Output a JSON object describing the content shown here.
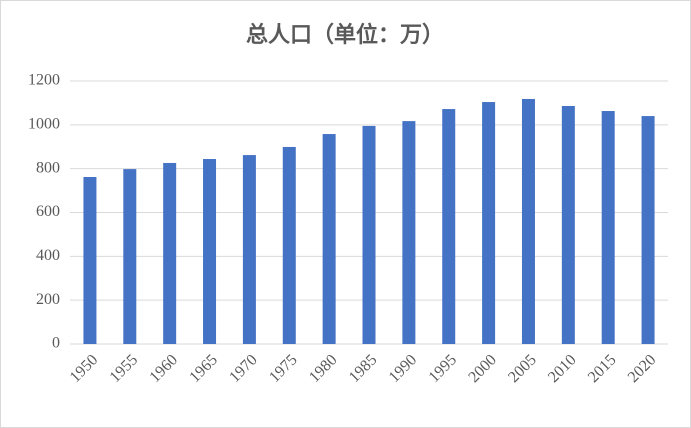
{
  "chart_data": {
    "type": "bar",
    "title": "总人口（单位：万）",
    "categories": [
      "1950",
      "1955",
      "1960",
      "1965",
      "1970",
      "1975",
      "1980",
      "1985",
      "1990",
      "1995",
      "2000",
      "2005",
      "2010",
      "2015",
      "2020"
    ],
    "values": [
      762,
      798,
      826,
      844,
      862,
      899,
      958,
      995,
      1017,
      1072,
      1104,
      1118,
      1086,
      1063,
      1040
    ],
    "color": "#4472c4",
    "ylim": [
      0,
      1200
    ],
    "yticks": [
      0,
      200,
      400,
      600,
      800,
      1000,
      1200
    ],
    "grid": true
  }
}
